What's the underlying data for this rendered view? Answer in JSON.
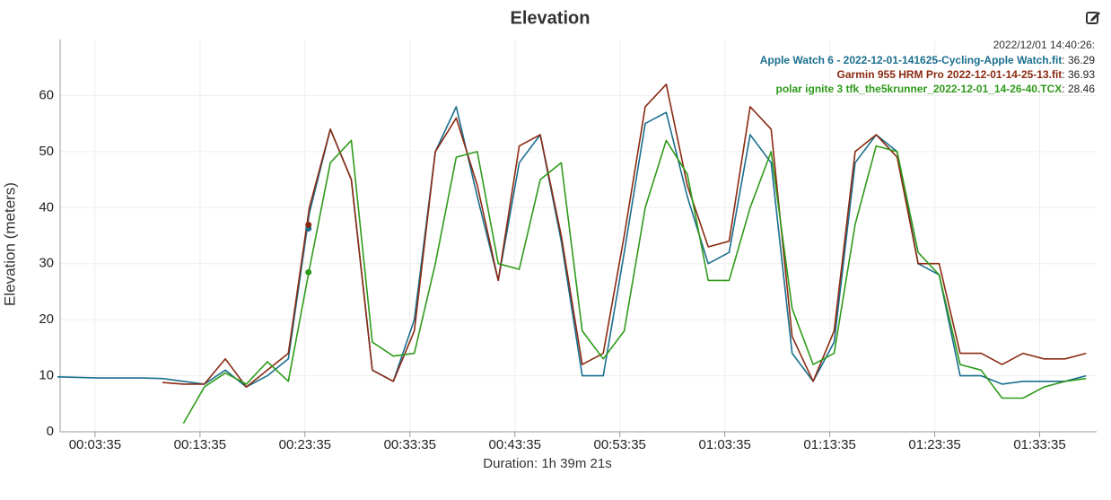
{
  "chart_data": {
    "type": "line",
    "title": "Elevation",
    "x_label": "Duration: 1h 39m 21s",
    "y_label": "Elevation (meters)",
    "xlim": [
      0,
      5961
    ],
    "ylim": [
      0,
      70
    ],
    "yticks": [
      0,
      10,
      20,
      30,
      40,
      50,
      60
    ],
    "xticks": [
      {
        "value": 215,
        "label": "00:03:35"
      },
      {
        "value": 815,
        "label": "00:13:35"
      },
      {
        "value": 1415,
        "label": "00:23:35"
      },
      {
        "value": 2015,
        "label": "00:33:35"
      },
      {
        "value": 2615,
        "label": "00:43:35"
      },
      {
        "value": 3215,
        "label": "00:53:35"
      },
      {
        "value": 3815,
        "label": "01:03:35"
      },
      {
        "value": 4415,
        "label": "01:13:35"
      },
      {
        "value": 5015,
        "label": "01:23:35"
      },
      {
        "value": 5615,
        "label": "01:33:35"
      }
    ],
    "grid": true,
    "hover": {
      "label": "2022/12/01 14:40:26:",
      "x": 1435
    },
    "x": [
      0,
      120,
      240,
      360,
      480,
      600,
      720,
      840,
      960,
      1080,
      1200,
      1320,
      1440,
      1560,
      1680,
      1800,
      1920,
      2040,
      2160,
      2280,
      2400,
      2520,
      2640,
      2760,
      2880,
      3000,
      3120,
      3240,
      3360,
      3480,
      3600,
      3720,
      3840,
      3960,
      4080,
      4200,
      4320,
      4440,
      4560,
      4680,
      4800,
      4920,
      5040,
      5160,
      5280,
      5400,
      5520,
      5640,
      5760,
      5880
    ],
    "series": [
      {
        "name": "Apple Watch 6 - 2022-12-01-141625-Cycling-Apple Watch.fit",
        "color": "#1a6e8e",
        "hover_value": 36.29,
        "hover_value_label": ": 36.29",
        "values": [
          9.8,
          9.7,
          9.6,
          9.6,
          9.6,
          9.5,
          9.0,
          8.5,
          11,
          8,
          10,
          13,
          39,
          54,
          45,
          11,
          9,
          20,
          50,
          58,
          42,
          27,
          48,
          53,
          34,
          10,
          10,
          32,
          55,
          57,
          42,
          30,
          32,
          53,
          48,
          14,
          9,
          16,
          48,
          53,
          50,
          30,
          28,
          10,
          10,
          8.5,
          9,
          9,
          9,
          10
        ]
      },
      {
        "name": "Garmin 955 HRM Pro 2022-12-01-14-25-13.fit",
        "color": "#8b2a12",
        "hover_value": 36.93,
        "hover_value_label": ": 36.93",
        "values": [
          null,
          null,
          null,
          null,
          null,
          8.8,
          8.5,
          8.5,
          13,
          8,
          11,
          14,
          40,
          54,
          45,
          11,
          9,
          18,
          50,
          56,
          44,
          27,
          51,
          53,
          35,
          12,
          14,
          35,
          58,
          62,
          44,
          33,
          34,
          58,
          54,
          17,
          9,
          18,
          50,
          53,
          49,
          30,
          30,
          14,
          14,
          12,
          14,
          13,
          13,
          14
        ]
      },
      {
        "name": "polar ignite 3 tfk_the5krunner_2022-12-01_14-26-40.TCX",
        "color": "#2e9a1a",
        "hover_value": 28.46,
        "hover_value_label": ": 28.46",
        "values": [
          null,
          null,
          null,
          null,
          null,
          null,
          1.5,
          8.0,
          10.5,
          8.5,
          12.5,
          9,
          29,
          48,
          52,
          16,
          13.5,
          14,
          30,
          49,
          50,
          30,
          29,
          45,
          48,
          18,
          13,
          18,
          40,
          52,
          46,
          27,
          27,
          40,
          50,
          22,
          12,
          14,
          37,
          51,
          50,
          32,
          28,
          12,
          11,
          6,
          6,
          8,
          9,
          9.5
        ]
      }
    ]
  }
}
